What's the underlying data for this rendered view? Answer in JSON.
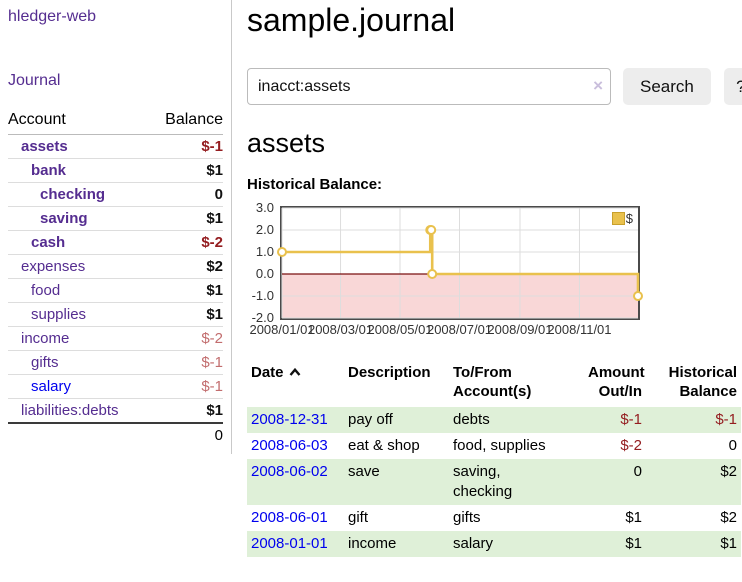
{
  "app": {
    "brand": "hledger-web"
  },
  "nav": {
    "journal": "Journal"
  },
  "sidebar": {
    "header": {
      "account": "Account",
      "balance": "Balance"
    },
    "accounts": [
      {
        "name": "assets",
        "name_class": "ind1 bold",
        "bal": "$-1",
        "bal_class": "neg"
      },
      {
        "name": "bank",
        "name_class": "ind2 bold",
        "bal": "$1",
        "bal_class": ""
      },
      {
        "name": "checking",
        "name_class": "ind3 bold",
        "bal": "0",
        "bal_class": ""
      },
      {
        "name": "saving",
        "name_class": "ind3 bold",
        "bal": "$1",
        "bal_class": ""
      },
      {
        "name": "cash",
        "name_class": "ind2 bold",
        "bal": "$-2",
        "bal_class": "neg"
      },
      {
        "name": "expenses",
        "name_class": "ind1",
        "bal": "$2",
        "bal_class": ""
      },
      {
        "name": "food",
        "name_class": "ind2",
        "bal": "$1",
        "bal_class": ""
      },
      {
        "name": "supplies",
        "name_class": "ind2",
        "bal": "$1",
        "bal_class": ""
      },
      {
        "name": "income",
        "name_class": "ind1",
        "bal": "$-2",
        "bal_class": "neg soft"
      },
      {
        "name": "gifts",
        "name_class": "ind2",
        "bal": "$-1",
        "bal_class": "neg soft"
      },
      {
        "name": "salary",
        "name_class": "ind2 unvisited",
        "bal": "$-1",
        "bal_class": "neg soft"
      },
      {
        "name": "liabilities:debts",
        "name_class": "ind1",
        "bal": "$1",
        "bal_class": ""
      }
    ],
    "total": "0"
  },
  "header": {
    "title": "sample.journal"
  },
  "search": {
    "value": "inacct:assets",
    "clear": "×",
    "submit": "Search",
    "help": "?"
  },
  "account_page": {
    "title": "assets",
    "chart_heading": "Historical Balance:"
  },
  "chart_data": {
    "type": "line",
    "step": true,
    "title": "Historical Balance",
    "x_domain": [
      "2008-01-01",
      "2008-12-31"
    ],
    "ylim": [
      -2,
      3
    ],
    "y_ticks": [
      "3.0",
      "2.0",
      "1.0",
      "0.0",
      "-1.0",
      "-2.0"
    ],
    "x_ticks": [
      "2008/01/01",
      "2008/03/01",
      "2008/05/01",
      "2008/07/01",
      "2008/09/01",
      "2008/11/01"
    ],
    "series": [
      {
        "name": "$",
        "color": "#e9c14d",
        "points": [
          [
            "2008-01-01",
            1
          ],
          [
            "2008-06-01",
            2
          ],
          [
            "2008-06-02",
            2
          ],
          [
            "2008-06-03",
            0
          ],
          [
            "2008-12-31",
            -1
          ]
        ]
      }
    ],
    "grid": true,
    "negative_region_color": "#f9d7d7",
    "zero_line_color": "#7a1010",
    "legend": {
      "label": "$",
      "position": "top-right"
    }
  },
  "register": {
    "headers": {
      "date": {
        "l1": "Date",
        "l2": ""
      },
      "description": {
        "l1": "Description",
        "l2": ""
      },
      "accounts": {
        "l1": "To/From",
        "l2": "Account(s)"
      },
      "amount": {
        "l1": "Amount",
        "l2": "Out/In"
      },
      "balance": {
        "l1": "Historical",
        "l2": "Balance"
      }
    },
    "rows": [
      {
        "date": "2008-12-31",
        "description": "pay off",
        "accounts": "debts",
        "amount": "$-1",
        "amount_class": "neg",
        "balance": "$-1",
        "balance_class": "neg"
      },
      {
        "date": "2008-06-03",
        "description": "eat & shop",
        "accounts": "food, supplies",
        "amount": "$-2",
        "amount_class": "neg",
        "balance": "0",
        "balance_class": ""
      },
      {
        "date": "2008-06-02",
        "description": "save",
        "accounts": "saving,\nchecking",
        "amount": "0",
        "amount_class": "",
        "balance": "$2",
        "balance_class": ""
      },
      {
        "date": "2008-06-01",
        "description": "gift",
        "accounts": "gifts",
        "amount": "$1",
        "amount_class": "",
        "balance": "$2",
        "balance_class": ""
      },
      {
        "date": "2008-01-01",
        "description": "income",
        "accounts": "salary",
        "amount": "$1",
        "amount_class": "",
        "balance": "$1",
        "balance_class": ""
      }
    ]
  }
}
